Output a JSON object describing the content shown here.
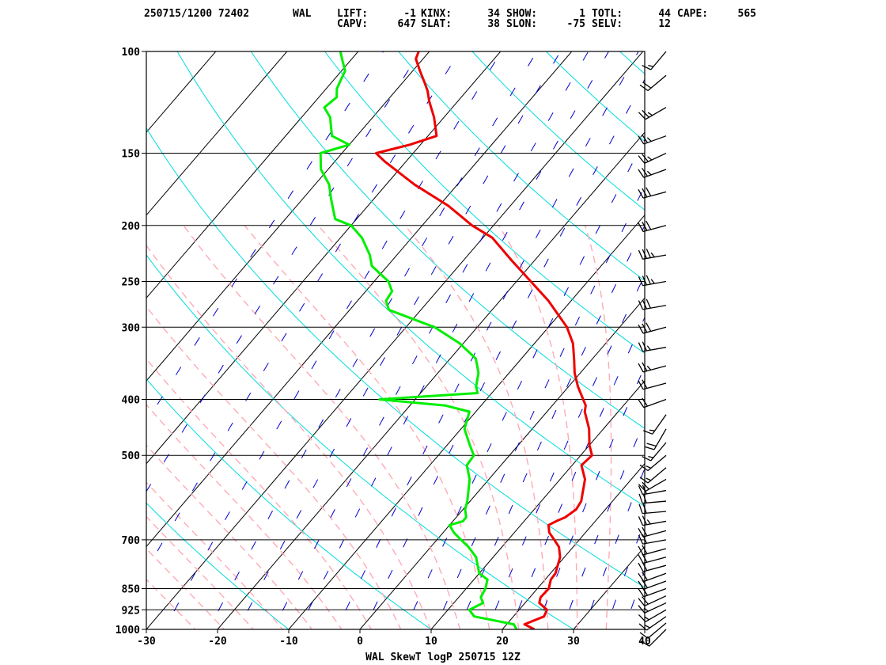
{
  "header": {
    "station_time": "250715/1200 72402",
    "station_id": "WAL",
    "indices": [
      {
        "label": "LIFT:",
        "value": "-1"
      },
      {
        "label": "KINX:",
        "value": "34"
      },
      {
        "label": "SHOW:",
        "value": "1"
      },
      {
        "label": "TOTL:",
        "value": "44"
      },
      {
        "label": "CAPE:",
        "value": "565"
      },
      {
        "label": "CAPV:",
        "value": "647"
      },
      {
        "label": "SLAT:",
        "value": "38"
      },
      {
        "label": "SLON:",
        "value": "-75"
      },
      {
        "label": "SELV:",
        "value": "12"
      }
    ]
  },
  "chart_data": {
    "type": "line",
    "title": "WAL SkewT logP 250715 12Z",
    "xlabel": "",
    "ylabel": "",
    "xlim": [
      -30,
      40
    ],
    "ylim": [
      1000,
      100
    ],
    "y_scale": "log",
    "x_ticks": [
      -30,
      -20,
      -10,
      0,
      10,
      20,
      30,
      40
    ],
    "y_ticks": [
      100,
      150,
      200,
      250,
      300,
      400,
      500,
      700,
      850,
      925,
      1000
    ],
    "colors": {
      "temperature": "#ee0000",
      "dewpoint": "#00ee00",
      "isotherm": "#000000",
      "dry_adiabat": "#00dddd",
      "moist_adiabat": "#ffaab4",
      "mixing_ratio": "#0000cc",
      "isobar": "#000000"
    },
    "series": [
      {
        "key": "temperature",
        "points": [
          [
            24.5,
            1000
          ],
          [
            22.5,
            980
          ],
          [
            24.3,
            950
          ],
          [
            23.9,
            925
          ],
          [
            22.0,
            900
          ],
          [
            21.5,
            880
          ],
          [
            21.6,
            850
          ],
          [
            20.8,
            820
          ],
          [
            20.7,
            800
          ],
          [
            19.4,
            750
          ],
          [
            18.0,
            720
          ],
          [
            16.5,
            700
          ],
          [
            14.9,
            680
          ],
          [
            13.9,
            660
          ],
          [
            14.5,
            650
          ],
          [
            15.3,
            640
          ],
          [
            15.9,
            620
          ],
          [
            15.6,
            600
          ],
          [
            13.5,
            550
          ],
          [
            11.3,
            520
          ],
          [
            11.6,
            500
          ],
          [
            10.0,
            480
          ],
          [
            8.0,
            450
          ],
          [
            5.3,
            420
          ],
          [
            4.7,
            410
          ],
          [
            3.6,
            400
          ],
          [
            1.3,
            380
          ],
          [
            -0.8,
            360
          ],
          [
            -2.6,
            340
          ],
          [
            -4.6,
            320
          ],
          [
            -7.4,
            300
          ],
          [
            -13.2,
            270
          ],
          [
            -18.0,
            250
          ],
          [
            -23.2,
            230
          ],
          [
            -28.7,
            210
          ],
          [
            -33.0,
            200
          ],
          [
            -38.7,
            185
          ],
          [
            -46.0,
            170
          ],
          [
            -53.0,
            155
          ],
          [
            -55.2,
            150
          ],
          [
            -51.5,
            145
          ],
          [
            -48.8,
            140
          ],
          [
            -51.4,
            130
          ],
          [
            -54.0,
            122
          ],
          [
            -55.5,
            117
          ],
          [
            -57.0,
            113
          ],
          [
            -59.0,
            108
          ],
          [
            -61.0,
            103
          ],
          [
            -61.5,
            100
          ]
        ]
      },
      {
        "key": "dewpoint",
        "points": [
          [
            22.0,
            1000
          ],
          [
            21.0,
            980
          ],
          [
            14.5,
            950
          ],
          [
            13.0,
            925
          ],
          [
            14.1,
            900
          ],
          [
            13.1,
            880
          ],
          [
            12.7,
            850
          ],
          [
            11.9,
            820
          ],
          [
            10.0,
            800
          ],
          [
            7.6,
            750
          ],
          [
            5.3,
            720
          ],
          [
            3.4,
            700
          ],
          [
            1.5,
            680
          ],
          [
            0.0,
            660
          ],
          [
            1.4,
            650
          ],
          [
            1.4,
            640
          ],
          [
            0.3,
            620
          ],
          [
            -0.4,
            600
          ],
          [
            -2.7,
            550
          ],
          [
            -4.8,
            520
          ],
          [
            -5.0,
            500
          ],
          [
            -6.8,
            480
          ],
          [
            -9.5,
            450
          ],
          [
            -10.9,
            420
          ],
          [
            -15.0,
            410
          ],
          [
            -25.0,
            400
          ],
          [
            -12.0,
            390
          ],
          [
            -13.0,
            380
          ],
          [
            -14.3,
            360
          ],
          [
            -16.4,
            340
          ],
          [
            -20.5,
            320
          ],
          [
            -26.0,
            300
          ],
          [
            -34.5,
            280
          ],
          [
            -36.0,
            270
          ],
          [
            -36.3,
            260
          ],
          [
            -38.0,
            250
          ],
          [
            -42.2,
            235
          ],
          [
            -43.8,
            225
          ],
          [
            -47.0,
            210
          ],
          [
            -50.0,
            200
          ],
          [
            -53.0,
            195
          ],
          [
            -56.0,
            180
          ],
          [
            -58.0,
            170
          ],
          [
            -61.0,
            160
          ],
          [
            -63.0,
            150
          ],
          [
            -60.0,
            145
          ],
          [
            -63.5,
            140
          ],
          [
            -66.0,
            130
          ],
          [
            -68.0,
            125
          ],
          [
            -67.5,
            120
          ],
          [
            -68.5,
            116
          ],
          [
            -69.0,
            112
          ],
          [
            -69.5,
            108
          ],
          [
            -71.0,
            104
          ],
          [
            -72.5,
            100
          ]
        ]
      }
    ],
    "wind_barbs": [
      {
        "p": 1000,
        "dir": 225,
        "kt": 10
      },
      {
        "p": 975,
        "dir": 230,
        "kt": 10
      },
      {
        "p": 950,
        "dir": 235,
        "kt": 15
      },
      {
        "p": 925,
        "dir": 240,
        "kt": 15
      },
      {
        "p": 900,
        "dir": 245,
        "kt": 15
      },
      {
        "p": 875,
        "dir": 245,
        "kt": 20
      },
      {
        "p": 850,
        "dir": 250,
        "kt": 20
      },
      {
        "p": 825,
        "dir": 250,
        "kt": 20
      },
      {
        "p": 800,
        "dir": 250,
        "kt": 20
      },
      {
        "p": 775,
        "dir": 255,
        "kt": 20
      },
      {
        "p": 750,
        "dir": 255,
        "kt": 20
      },
      {
        "p": 725,
        "dir": 255,
        "kt": 20
      },
      {
        "p": 700,
        "dir": 260,
        "kt": 20
      },
      {
        "p": 675,
        "dir": 255,
        "kt": 20
      },
      {
        "p": 650,
        "dir": 260,
        "kt": 25
      },
      {
        "p": 625,
        "dir": 265,
        "kt": 20
      },
      {
        "p": 600,
        "dir": 265,
        "kt": 20
      },
      {
        "p": 575,
        "dir": 260,
        "kt": 20
      },
      {
        "p": 550,
        "dir": 240,
        "kt": 20
      },
      {
        "p": 525,
        "dir": 230,
        "kt": 15
      },
      {
        "p": 500,
        "dir": 230,
        "kt": 15
      },
      {
        "p": 475,
        "dir": 220,
        "kt": 15
      },
      {
        "p": 450,
        "dir": 210,
        "kt": 20
      },
      {
        "p": 425,
        "dir": 215,
        "kt": 15
      },
      {
        "p": 400,
        "dir": 250,
        "kt": 20
      },
      {
        "p": 375,
        "dir": 255,
        "kt": 20
      },
      {
        "p": 350,
        "dir": 255,
        "kt": 25
      },
      {
        "p": 325,
        "dir": 260,
        "kt": 25
      },
      {
        "p": 300,
        "dir": 255,
        "kt": 30
      },
      {
        "p": 275,
        "dir": 260,
        "kt": 30
      },
      {
        "p": 250,
        "dir": 260,
        "kt": 35
      },
      {
        "p": 225,
        "dir": 260,
        "kt": 35
      },
      {
        "p": 200,
        "dir": 255,
        "kt": 30
      },
      {
        "p": 175,
        "dir": 255,
        "kt": 30
      },
      {
        "p": 160,
        "dir": 250,
        "kt": 25
      },
      {
        "p": 150,
        "dir": 245,
        "kt": 25
      },
      {
        "p": 140,
        "dir": 250,
        "kt": 25
      },
      {
        "p": 125,
        "dir": 240,
        "kt": 25
      },
      {
        "p": 110,
        "dir": 230,
        "kt": 20
      },
      {
        "p": 100,
        "dir": 220,
        "kt": 15
      }
    ]
  }
}
